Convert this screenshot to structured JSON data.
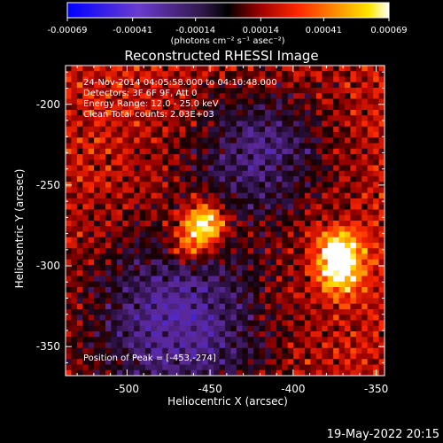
{
  "chart_data": {
    "type": "heatmap",
    "title": "Reconstructed RHESSI Image",
    "xlabel": "Heliocentric X (arcsec)",
    "ylabel": "Heliocentric Y (arcsec)",
    "xlim": [
      -537,
      -345
    ],
    "ylim": [
      -368,
      -176
    ],
    "x_ticks": [
      -500,
      -450,
      -400,
      -350
    ],
    "y_ticks": [
      -200,
      -250,
      -300,
      -350
    ],
    "x_tick_labels": [
      "-500",
      "-450",
      "-400",
      "-350"
    ],
    "y_tick_labels": [
      "-200",
      "-250",
      "-300",
      "-350"
    ],
    "colorbar": {
      "range": [
        -0.00069,
        0.00069
      ],
      "ticks": [
        -0.00069,
        -0.00041,
        -0.00014,
        0.00014,
        0.00041,
        0.00069
      ],
      "tick_labels": [
        "-0.00069",
        "-0.00041",
        "-0.00014",
        "0.00014",
        "0.00041",
        "0.00069"
      ],
      "units_label": "(photons cm⁻² s⁻¹ asec⁻²)",
      "colormap": "RHESSI blue-purple-red-yellow-white"
    },
    "annotations": [
      "24-Nov-2014 04:05:58.000 to 04:10:48.000",
      "Detectors: 3F 6F 9F, Att 0",
      "Energy Range: 12.0 - 25.0 keV",
      "Clean     Total counts: 2.03E+03"
    ],
    "peak_label": "Position of Peak = [-453,-274]",
    "peak": {
      "x": -453,
      "y": -274
    },
    "sources": [
      {
        "x": -453,
        "y": -274,
        "strength": 1.0
      },
      {
        "x": -372,
        "y": -290,
        "strength": 0.85
      },
      {
        "x": -372,
        "y": -306,
        "strength": 0.75
      },
      {
        "x": -463,
        "y": -288,
        "strength": 0.55
      }
    ],
    "grid": false
  },
  "footer": {
    "timestamp": "19-May-2022 20:15"
  },
  "colors": {
    "background": "#000000",
    "text": "#ffffff"
  }
}
